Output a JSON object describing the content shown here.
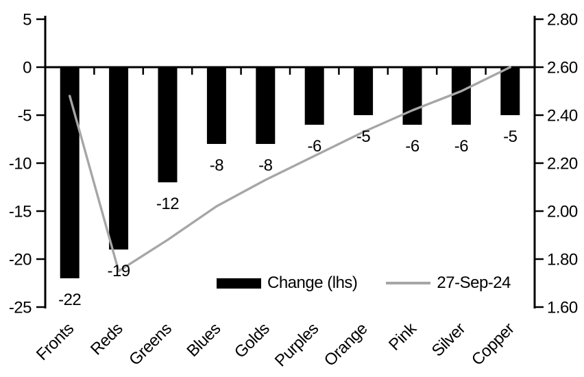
{
  "chart_data": {
    "type": "combo-bar-line",
    "title": "",
    "background": "#ffffff",
    "axis_color": "#000000",
    "grid": "off",
    "categories": [
      "Fronts",
      "Reds",
      "Greens",
      "Blues",
      "Golds",
      "Purples",
      "Orange",
      "Pink",
      "Silver",
      "Copper"
    ],
    "series": [
      {
        "name": "Change (lhs)",
        "type": "bar",
        "axis": "left",
        "color": "#000000",
        "values": [
          -22,
          -19,
          -12,
          -8,
          -8,
          -6,
          -5,
          -6,
          -6,
          -5
        ],
        "data_labels": [
          "-22",
          "-19",
          "-12",
          "-8",
          "-8",
          "-6",
          "-5",
          "-6",
          "-6",
          "-5"
        ]
      },
      {
        "name": "27-Sep-24",
        "type": "line",
        "axis": "right",
        "color": "#a6a6a6",
        "values": [
          2.48,
          1.75,
          1.88,
          2.02,
          2.13,
          2.23,
          2.33,
          2.42,
          2.5,
          2.6
        ]
      }
    ],
    "left_axis": {
      "max": 5,
      "min": -25,
      "step": 5,
      "tick_labels": [
        "5",
        "0",
        "-5",
        "-10",
        "-15",
        "-20",
        "-25"
      ]
    },
    "right_axis": {
      "max": 2.8,
      "min": 1.6,
      "step": 0.2,
      "tick_labels": [
        "2.80",
        "2.60",
        "2.40",
        "2.20",
        "2.00",
        "1.80",
        "1.60"
      ]
    },
    "legend": {
      "position": "bottom-center",
      "items": [
        {
          "label": "Change (lhs)",
          "swatch": "bar"
        },
        {
          "label": "27-Sep-24",
          "swatch": "line"
        }
      ]
    }
  }
}
